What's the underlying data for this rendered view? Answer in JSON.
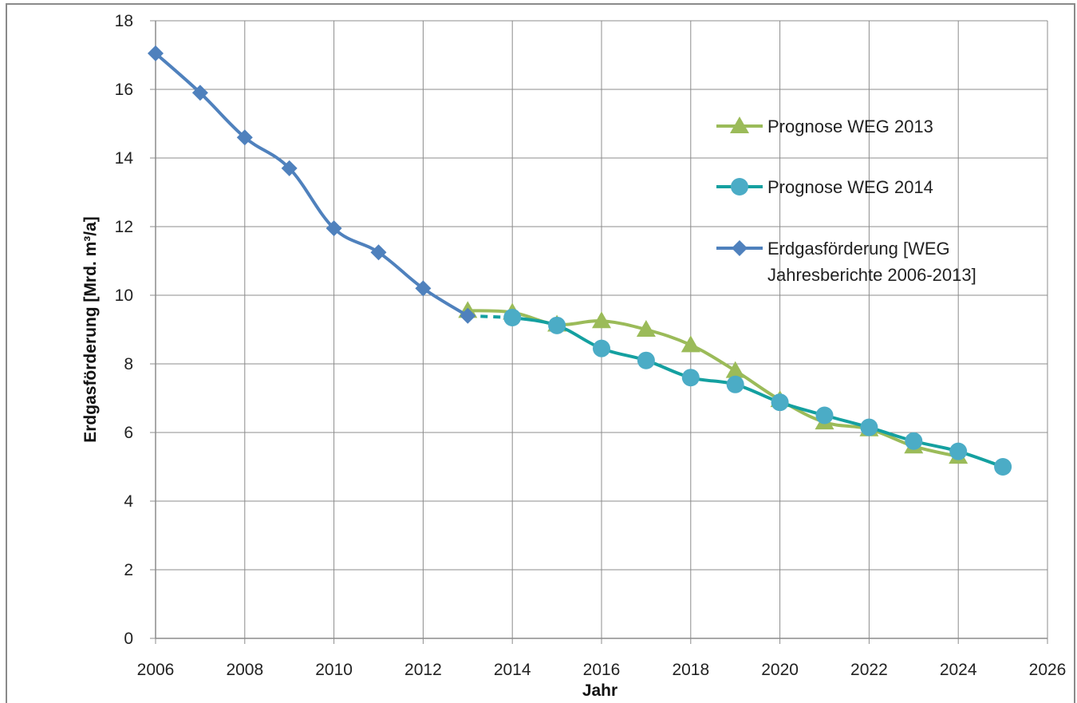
{
  "chart_data": {
    "type": "line",
    "xlabel": "Jahr",
    "ylabel": "Erdgasförderung [Mrd. m³/a]",
    "xlim": [
      2006,
      2026
    ],
    "ylim": [
      0,
      18
    ],
    "x_ticks": [
      "2006",
      "2008",
      "2010",
      "2012",
      "2014",
      "2016",
      "2018",
      "2020",
      "2022",
      "2024",
      "2026"
    ],
    "y_ticks": [
      "0",
      "2",
      "4",
      "6",
      "8",
      "10",
      "12",
      "14",
      "16",
      "18"
    ],
    "grid": true,
    "legend_position": "right",
    "series": [
      {
        "name": "Prognose WEG 2013",
        "color": "#9bbb59",
        "marker": "triangle",
        "smooth": true,
        "points": [
          [
            2013,
            9.55
          ],
          [
            2014,
            9.5
          ],
          [
            2015,
            9.15
          ],
          [
            2016,
            9.25
          ],
          [
            2017,
            9.0
          ],
          [
            2018,
            8.55
          ],
          [
            2019,
            7.8
          ],
          [
            2020,
            6.95
          ],
          [
            2021,
            6.3
          ],
          [
            2022,
            6.1
          ],
          [
            2023,
            5.6
          ],
          [
            2024,
            5.3
          ]
        ]
      },
      {
        "name": "Prognose WEG 2014",
        "color": "#14a0a0",
        "marker": "circle",
        "smooth": true,
        "points": [
          [
            2014,
            9.35
          ],
          [
            2015,
            9.12
          ],
          [
            2016,
            8.45
          ],
          [
            2017,
            8.1
          ],
          [
            2018,
            7.6
          ],
          [
            2019,
            7.4
          ],
          [
            2020,
            6.88
          ],
          [
            2021,
            6.5
          ],
          [
            2022,
            6.15
          ],
          [
            2023,
            5.75
          ],
          [
            2024,
            5.45
          ],
          [
            2025,
            5.0
          ]
        ]
      },
      {
        "name": "Erdgasförderung [WEG Jahresberichte 2006-2013]",
        "legend_lines": [
          "Erdgasförderung [WEG",
          "Jahresberichte 2006-2013]"
        ],
        "color": "#4f81bd",
        "marker": "diamond",
        "smooth": true,
        "points": [
          [
            2006,
            17.05
          ],
          [
            2007,
            15.9
          ],
          [
            2008,
            14.6
          ],
          [
            2009,
            13.7
          ],
          [
            2010,
            11.95
          ],
          [
            2011,
            11.25
          ],
          [
            2012,
            10.2
          ],
          [
            2013,
            9.4
          ]
        ]
      }
    ],
    "connector": {
      "style": "dashed",
      "color": "#14a0a0",
      "points": [
        [
          2013,
          9.4
        ],
        [
          2014,
          9.35
        ]
      ]
    }
  }
}
